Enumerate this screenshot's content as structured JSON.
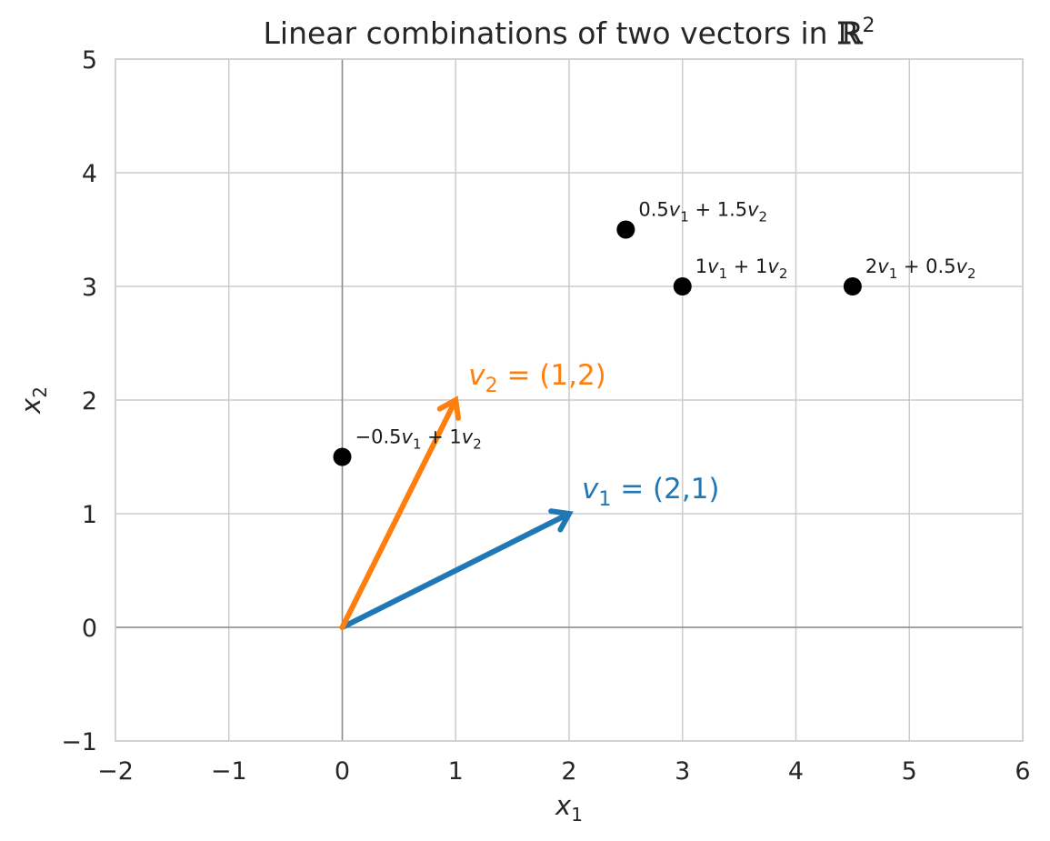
{
  "chart_data": {
    "type": "scatter",
    "title_main": "Linear combinations of two vectors in ",
    "title_space": "ℝ",
    "title_exp": "2",
    "xlabel": {
      "base": "x",
      "sub": "1"
    },
    "ylabel": {
      "base": "x",
      "sub": "2"
    },
    "xlim": [
      -2,
      6
    ],
    "ylim": [
      -1,
      5
    ],
    "xticks": [
      -2,
      -1,
      0,
      1,
      2,
      3,
      4,
      5,
      6
    ],
    "yticks": [
      -1,
      0,
      1,
      2,
      3,
      4,
      5
    ],
    "xtick_labels": [
      "−2",
      "−1",
      "0",
      "1",
      "2",
      "3",
      "4",
      "5",
      "6"
    ],
    "ytick_labels": [
      "−1",
      "0",
      "1",
      "2",
      "3",
      "4",
      "5"
    ],
    "grid": true,
    "vectors": [
      {
        "id": "v1",
        "base": "v",
        "sub": "1",
        "text": " = (2,1)",
        "from": [
          0,
          0
        ],
        "to": [
          2,
          1
        ],
        "color": "#1f77b4"
      },
      {
        "id": "v2",
        "base": "v",
        "sub": "2",
        "text": " = (1,2)",
        "from": [
          0,
          0
        ],
        "to": [
          1,
          2
        ],
        "color": "#ff7f0e"
      }
    ],
    "points": [
      {
        "x": 2.5,
        "y": 3.5,
        "c1": "0.5",
        "c2": "1.5",
        "p1": "",
        "p2": " + "
      },
      {
        "x": 3.0,
        "y": 3.0,
        "c1": "1",
        "c2": "1",
        "p1": "",
        "p2": " + "
      },
      {
        "x": 4.5,
        "y": 3.0,
        "c1": "2",
        "c2": "0.5",
        "p1": "",
        "p2": " + "
      },
      {
        "x": 0.0,
        "y": 1.5,
        "c1": "0.5",
        "c2": "1",
        "p1": "−",
        "p2": " + "
      }
    ],
    "point_color": "#000000"
  }
}
